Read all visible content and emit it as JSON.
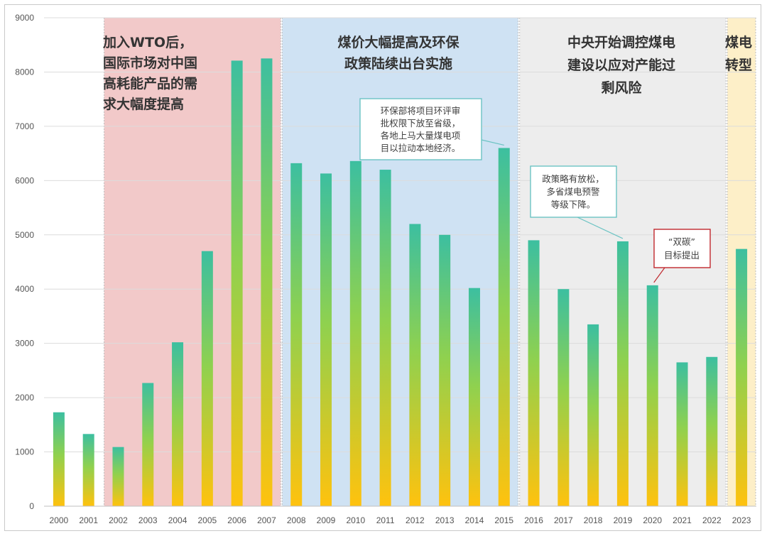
{
  "chart_data": {
    "type": "bar",
    "categories": [
      "2000",
      "2001",
      "2002",
      "2003",
      "2004",
      "2005",
      "2006",
      "2007",
      "2008",
      "2009",
      "2010",
      "2011",
      "2012",
      "2013",
      "2014",
      "2015",
      "2016",
      "2017",
      "2018",
      "2019",
      "2020",
      "2021",
      "2022",
      "2023"
    ],
    "values": [
      1730,
      1330,
      1090,
      2270,
      3020,
      4700,
      8210,
      8250,
      6320,
      6130,
      6360,
      6200,
      5200,
      5000,
      4020,
      6600,
      4900,
      4000,
      3350,
      4880,
      4070,
      2650,
      2750,
      4740
    ],
    "ylim": [
      0,
      9000
    ],
    "yticks": [
      0,
      1000,
      2000,
      3000,
      4000,
      5000,
      6000,
      7000,
      8000,
      9000
    ],
    "grid": true,
    "bar_gradient": [
      "#3cbfa0",
      "#8fd14f",
      "#ffc20e"
    ],
    "bands": [
      {
        "from": "2002",
        "to": "2007",
        "color": "#f2c9c9",
        "lines": [
          "加入WTO后，",
          "国际市场对中国",
          "高耗能产品的需",
          "求大幅度提高"
        ]
      },
      {
        "from": "2008",
        "to": "2015",
        "color": "#cfe2f3",
        "lines": [
          "煤价大幅提高及环保",
          "政策陆续出台实施"
        ]
      },
      {
        "from": "2016",
        "to": "2022",
        "color": "#ededed",
        "lines": [
          "中央开始调控煤电",
          "建设以应对产能过",
          "剩风险"
        ]
      },
      {
        "from": "2023",
        "to": "2023",
        "color": "#fdefc8",
        "lines": [
          "煤电",
          "转型"
        ]
      }
    ],
    "annotations": [
      {
        "target": "2015",
        "border": "#6bc3c3",
        "lines": [
          "环保部将项目环评审",
          "批权限下放至省级，",
          "各地上马大量煤电项",
          "目以拉动本地经济。"
        ]
      },
      {
        "target": "2019",
        "border": "#6bc3c3",
        "lines": [
          "政策略有放松，",
          "多省煤电预警",
          "等级下降。"
        ]
      },
      {
        "target": "2020",
        "border": "#c0272d",
        "lines": [
          "“双碳”",
          "目标提出"
        ]
      }
    ]
  }
}
